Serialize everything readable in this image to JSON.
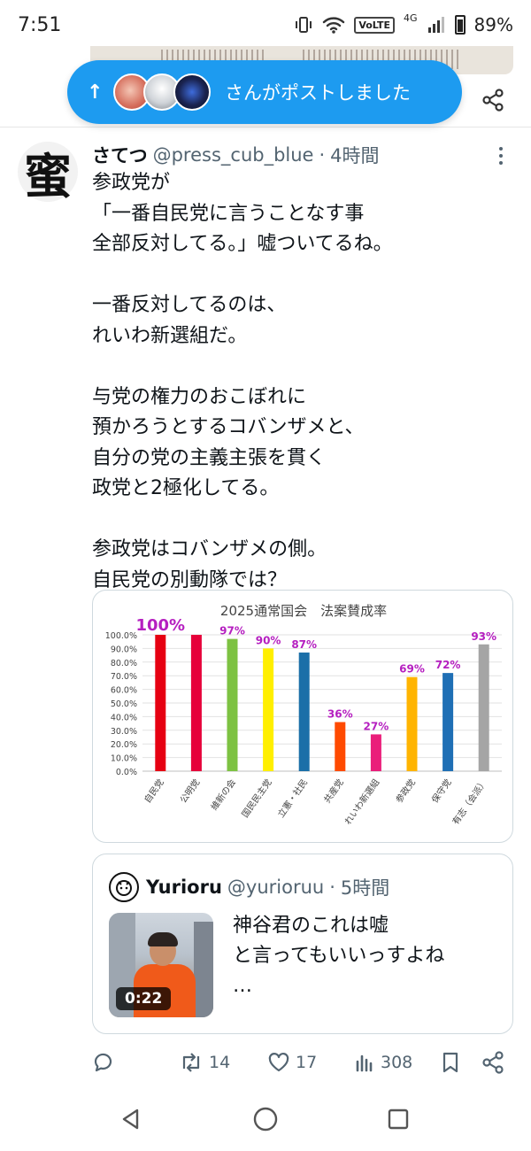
{
  "status_bar": {
    "time": "7:51",
    "network": "4G",
    "volte": "VoLTE",
    "battery": "89%"
  },
  "notification_pill": {
    "text": "さんがポストしました"
  },
  "tweet": {
    "author_name": "さてつ",
    "handle": "@press_cub_blue",
    "separator": "·",
    "time": "4時間",
    "avatar_glyph": "蜜",
    "body": "参政党が\n「一番自民党に言うことなす事\n全部反対してる。」嘘ついてるね。\n\n一番反対してるのは、\nれいわ新選組だ。\n\n与党の権力のおこぼれに\n預かろうとするコバンザメと、\n自分の党の主義主張を貫く\n政党と2極化してる。\n\n参政党はコバンザメの側。\n自民党の別動隊では？",
    "actions": {
      "reply": "",
      "retweets": "14",
      "likes": "17",
      "views": "308"
    }
  },
  "quote": {
    "name": "Yurioru",
    "handle": "@yurioruu",
    "separator": "·",
    "time": "5時間",
    "video_duration": "0:22",
    "text": "神谷君のこれは嘘\nと言ってもいいっすよね\n…"
  },
  "chart_data": {
    "type": "bar",
    "title": "2025通常国会　法案賛成率",
    "categories": [
      "自民党",
      "公明党",
      "維新の会",
      "国民民主党",
      "立憲・社民",
      "共産党",
      "れいわ新選組",
      "参政党",
      "保守党",
      "有志（会派）"
    ],
    "values": [
      100,
      100,
      97,
      90,
      87,
      36,
      27,
      69,
      72,
      93
    ],
    "data_labels": [
      "100%",
      "",
      "97%",
      "90%",
      "87%",
      "36%",
      "27%",
      "69%",
      "72%",
      "93%"
    ],
    "colors": [
      "#e60012",
      "#e6003a",
      "#7dc242",
      "#ffef00",
      "#1b6fa8",
      "#ff4a00",
      "#ea1e7a",
      "#ffb400",
      "#1f6fb5",
      "#a5a5a5"
    ],
    "y_ticks": [
      "0.0%",
      "10.0%",
      "20.0%",
      "30.0%",
      "40.0%",
      "50.0%",
      "60.0%",
      "70.0%",
      "80.0%",
      "90.0%",
      "100.0%"
    ],
    "ylim": [
      0,
      100
    ],
    "label_color": "#b51fc0",
    "grid": true,
    "legend": false
  }
}
